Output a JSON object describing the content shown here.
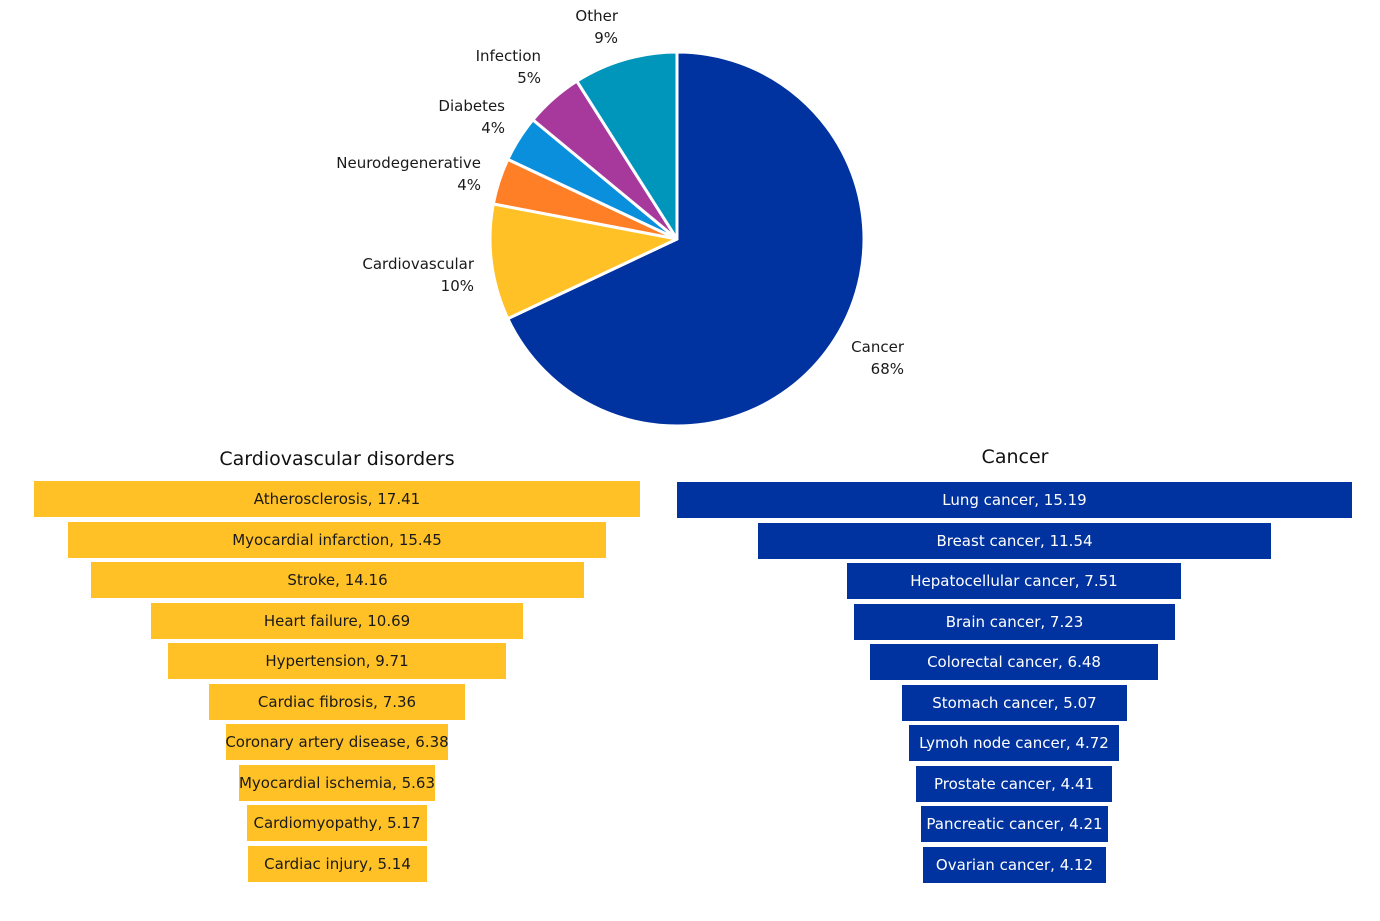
{
  "colors": {
    "cancer": "#0033A0",
    "cardiovascular": "#FFC125",
    "neurodegenerative": "#FF7F27",
    "diabetes": "#0A8FDC",
    "infection": "#A6399B",
    "other": "#0096BB"
  },
  "chart_data": [
    {
      "type": "pie",
      "slices": [
        {
          "label": "Cancer",
          "value": 68,
          "value_label": "68%",
          "color": "#0033A0"
        },
        {
          "label": "Cardiovascular",
          "value": 10,
          "value_label": "10%",
          "color": "#FFC125"
        },
        {
          "label": "Neurodegenerative",
          "value": 4,
          "value_label": "4%",
          "color": "#FF7F27"
        },
        {
          "label": "Diabetes",
          "value": 4,
          "value_label": "4%",
          "color": "#0A8FDC"
        },
        {
          "label": "Infection",
          "value": 5,
          "value_label": "5%",
          "color": "#A6399B"
        },
        {
          "label": "Other",
          "value": 9,
          "value_label": "9%",
          "color": "#0096BB"
        }
      ]
    },
    {
      "type": "bar",
      "orientation": "funnel",
      "title": "Cardiovascular disorders",
      "color": "#FFC125",
      "items": [
        {
          "label": "Atherosclerosis",
          "value": 17.41,
          "text": "Atherosclerosis, 17.41"
        },
        {
          "label": "Myocardial infarction",
          "value": 15.45,
          "text": "Myocardial infarction, 15.45"
        },
        {
          "label": "Stroke",
          "value": 14.16,
          "text": "Stroke, 14.16"
        },
        {
          "label": "Heart failure",
          "value": 10.69,
          "text": "Heart failure, 10.69"
        },
        {
          "label": "Hypertension",
          "value": 9.71,
          "text": "Hypertension, 9.71"
        },
        {
          "label": "Cardiac fibrosis",
          "value": 7.36,
          "text": "Cardiac fibrosis, 7.36"
        },
        {
          "label": "Coronary artery disease",
          "value": 6.38,
          "text": "Coronary artery disease, 6.38"
        },
        {
          "label": "Myocardial ischemia",
          "value": 5.63,
          "text": "Myocardial ischemia, 5.63"
        },
        {
          "label": "Cardiomyopathy",
          "value": 5.17,
          "text": "Cardiomyopathy, 5.17"
        },
        {
          "label": "Cardiac injury",
          "value": 5.14,
          "text": "Cardiac injury, 5.14"
        }
      ]
    },
    {
      "type": "bar",
      "orientation": "funnel",
      "title": "Cancer",
      "color": "#0033A0",
      "items": [
        {
          "label": "Lung cancer",
          "value": 15.19,
          "text": "Lung cancer, 15.19"
        },
        {
          "label": "Breast cancer",
          "value": 11.54,
          "text": "Breast cancer, 11.54"
        },
        {
          "label": "Hepatocellular cancer",
          "value": 7.51,
          "text": "Hepatocellular cancer, 7.51"
        },
        {
          "label": "Brain cancer",
          "value": 7.23,
          "text": "Brain cancer, 7.23"
        },
        {
          "label": "Colorectal cancer",
          "value": 6.48,
          "text": "Colorectal cancer, 6.48"
        },
        {
          "label": "Stomach cancer",
          "value": 5.07,
          "text": "Stomach cancer, 5.07"
        },
        {
          "label": "Lymoh node cancer",
          "value": 4.72,
          "text": "Lymoh node cancer, 4.72"
        },
        {
          "label": "Prostate cancer",
          "value": 4.41,
          "text": "Prostate cancer, 4.41"
        },
        {
          "label": "Pancreatic cancer",
          "value": 4.21,
          "text": "Pancreatic cancer, 4.21"
        },
        {
          "label": "Ovarian cancer",
          "value": 4.12,
          "text": "Ovarian cancer, 4.12"
        }
      ]
    }
  ]
}
